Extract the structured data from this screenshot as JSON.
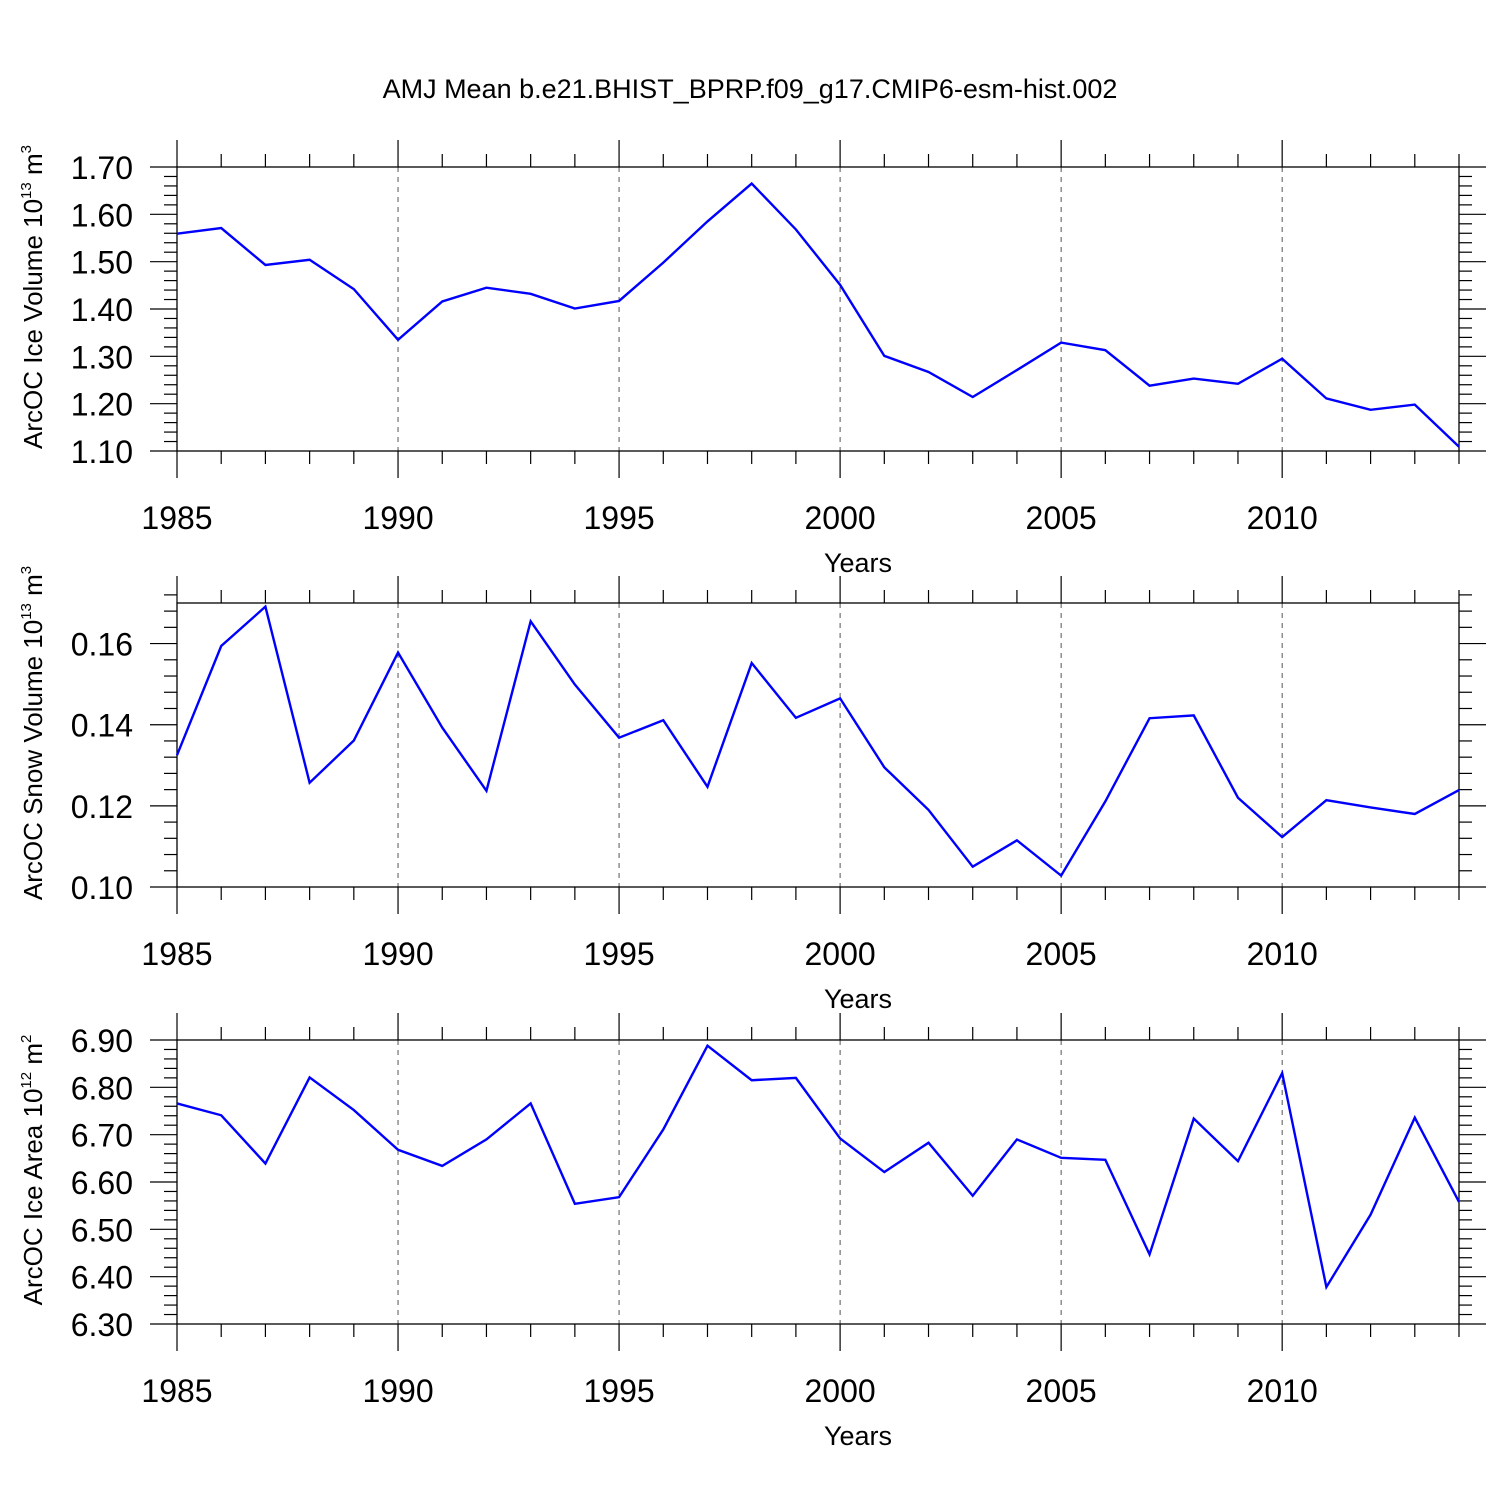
{
  "figure_title": "AMJ Mean b.e21.BHIST_BPRP.f09_g17.CMIP6-esm-hist.002",
  "colors": {
    "line": "#0000ff",
    "axis": "#000000",
    "grid": "#555555"
  },
  "chart_data": [
    {
      "type": "line",
      "title": "AMJ Mean b.e21.BHIST_BPRP.f09_g17.CMIP6-esm-hist.002",
      "xlabel": "Years",
      "ylabel": {
        "main": "ArcOC Ice Volume 10",
        "exp": "13",
        "unit": " m",
        "unit_exp": "3"
      },
      "xlim": [
        1985,
        2014
      ],
      "ylim": [
        1.1,
        1.7
      ],
      "xticks": [
        1985,
        1990,
        1995,
        2000,
        2005,
        2010
      ],
      "xtick_labels": [
        "1985",
        "1990",
        "1995",
        "2000",
        "2005",
        "2010"
      ],
      "yticks": [
        1.1,
        1.2,
        1.3,
        1.4,
        1.5,
        1.6,
        1.7
      ],
      "ytick_labels": [
        "1.10",
        "1.20",
        "1.30",
        "1.40",
        "1.50",
        "1.60",
        "1.70"
      ],
      "grid": "vertical dashed at major x ticks",
      "x": [
        1985,
        1986,
        1987,
        1988,
        1989,
        1990,
        1991,
        1992,
        1993,
        1994,
        1995,
        1996,
        1997,
        1998,
        1999,
        2000,
        2001,
        2002,
        2003,
        2004,
        2005,
        2006,
        2007,
        2008,
        2009,
        2010,
        2011,
        2012,
        2013,
        2014
      ],
      "series": [
        {
          "name": "ArcOC Ice Volume",
          "values": [
            1.559,
            1.571,
            1.493,
            1.504,
            1.442,
            1.335,
            1.416,
            1.445,
            1.432,
            1.401,
            1.417,
            1.498,
            1.585,
            1.665,
            1.568,
            1.451,
            1.301,
            1.267,
            1.214,
            1.271,
            1.329,
            1.313,
            1.238,
            1.253,
            1.242,
            1.295,
            1.211,
            1.187,
            1.198,
            1.109
          ]
        }
      ]
    },
    {
      "type": "line",
      "xlabel": "Years",
      "ylabel": {
        "main": "ArcOC Snow Volume 10",
        "exp": "13",
        "unit": " m",
        "unit_exp": "3"
      },
      "xlim": [
        1985,
        2014
      ],
      "ylim": [
        0.1,
        0.17
      ],
      "xticks": [
        1985,
        1990,
        1995,
        2000,
        2005,
        2010
      ],
      "xtick_labels": [
        "1985",
        "1990",
        "1995",
        "2000",
        "2005",
        "2010"
      ],
      "yticks": [
        0.1,
        0.12,
        0.14,
        0.16
      ],
      "ytick_labels": [
        "0.10",
        "0.12",
        "0.14",
        "0.16"
      ],
      "grid": "vertical dashed at major x ticks",
      "x": [
        1985,
        1986,
        1987,
        1988,
        1989,
        1990,
        1991,
        1992,
        1993,
        1994,
        1995,
        1996,
        1997,
        1998,
        1999,
        2000,
        2001,
        2002,
        2003,
        2004,
        2005,
        2006,
        2007,
        2008,
        2009,
        2010,
        2011,
        2012,
        2013,
        2014
      ],
      "series": [
        {
          "name": "ArcOC Snow Volume",
          "values": [
            0.1325,
            0.1594,
            0.1691,
            0.1257,
            0.1361,
            0.1578,
            0.1393,
            0.1237,
            0.1655,
            0.1499,
            0.1368,
            0.1411,
            0.1247,
            0.1552,
            0.1417,
            0.1465,
            0.1295,
            0.119,
            0.105,
            0.1115,
            0.1028,
            0.1211,
            0.1416,
            0.1423,
            0.122,
            0.1123,
            0.1214,
            0.1196,
            0.118,
            0.1239
          ]
        }
      ]
    },
    {
      "type": "line",
      "xlabel": "Years",
      "ylabel": {
        "main": "ArcOC Ice Area 10",
        "exp": "12",
        "unit": " m",
        "unit_exp": "2"
      },
      "xlim": [
        1985,
        2014
      ],
      "ylim": [
        6.3,
        6.9
      ],
      "xticks": [
        1985,
        1990,
        1995,
        2000,
        2005,
        2010
      ],
      "xtick_labels": [
        "1985",
        "1990",
        "1995",
        "2000",
        "2005",
        "2010"
      ],
      "yticks": [
        6.3,
        6.4,
        6.5,
        6.6,
        6.7,
        6.8,
        6.9
      ],
      "ytick_labels": [
        "6.30",
        "6.40",
        "6.50",
        "6.60",
        "6.70",
        "6.80",
        "6.90"
      ],
      "grid": "vertical dashed at major x ticks",
      "x": [
        1985,
        1986,
        1987,
        1988,
        1989,
        1990,
        1991,
        1992,
        1993,
        1994,
        1995,
        1996,
        1997,
        1998,
        1999,
        2000,
        2001,
        2002,
        2003,
        2004,
        2005,
        2006,
        2007,
        2008,
        2009,
        2010,
        2011,
        2012,
        2013,
        2014
      ],
      "series": [
        {
          "name": "ArcOC Ice Area",
          "values": [
            6.766,
            6.741,
            6.639,
            6.821,
            6.752,
            6.668,
            6.634,
            6.69,
            6.766,
            6.554,
            6.568,
            6.711,
            6.888,
            6.815,
            6.82,
            6.692,
            6.621,
            6.683,
            6.571,
            6.69,
            6.651,
            6.647,
            6.447,
            6.734,
            6.644,
            6.83,
            6.378,
            6.531,
            6.736,
            6.558
          ]
        }
      ]
    }
  ]
}
